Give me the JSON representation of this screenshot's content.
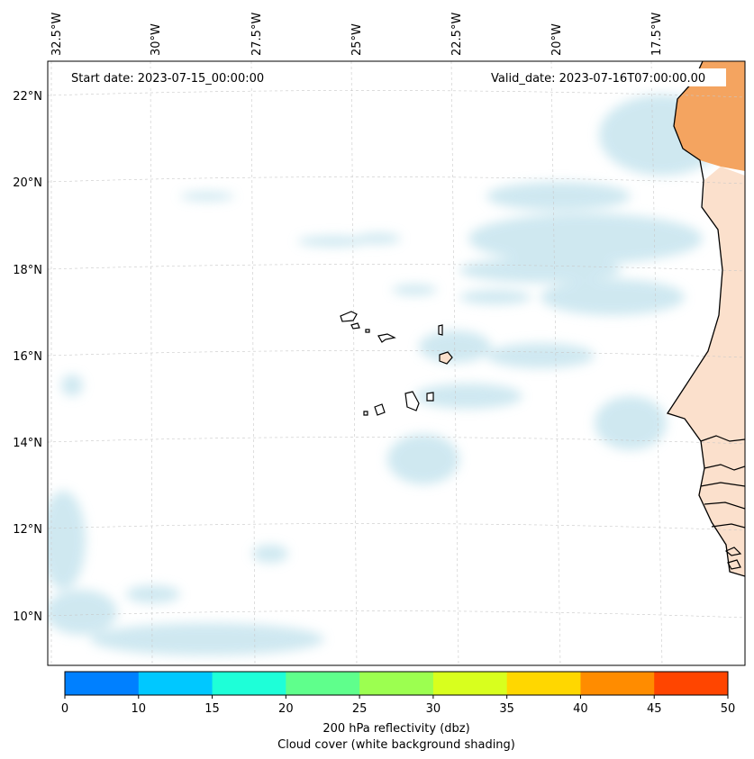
{
  "map": {
    "start_date": "Start date: 2023-07-15_00:00:00",
    "valid_date": "Valid_date: 2023-07-16T07:00:00.00",
    "lon_labels": [
      "32.5°W",
      "30°W",
      "27.5°W",
      "25°W",
      "22.5°W",
      "20°W",
      "17.5°W"
    ],
    "lat_labels": [
      "22°N",
      "20°N",
      "18°N",
      "16°N",
      "14°N",
      "12°N",
      "10°N"
    ]
  },
  "colorbar": {
    "ticks": [
      "0",
      "10",
      "15",
      "20",
      "25",
      "30",
      "35",
      "40",
      "45",
      "50"
    ],
    "colors": [
      "#0080ff",
      "#00c8ff",
      "#1effd8",
      "#5fff8c",
      "#9cff50",
      "#d8ff1e",
      "#ffd700",
      "#ff8c00",
      "#ff4500"
    ],
    "label_line1": "200 hPa reflectivity (dbz)",
    "label_line2": "Cloud cover (white background shading)"
  },
  "colors": {
    "cloud": "#bfe1ec",
    "land_hot": "#f4a460",
    "land_warm": "#fbe0cc",
    "grid": "#c8c8c8"
  }
}
